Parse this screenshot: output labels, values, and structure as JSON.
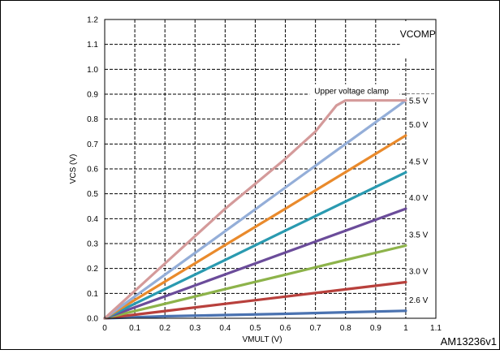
{
  "chart_data": {
    "type": "line",
    "xlabel": "VMULT (V)",
    "ylabel": "VCS (V)",
    "xlim": [
      0,
      1.1
    ],
    "ylim": [
      0,
      1.2
    ],
    "x_ticks": [
      "0",
      "0.1",
      "0.2",
      "0.3",
      "0.4",
      "0.5",
      "0.6",
      "0.7",
      "0.8",
      "0.9",
      "1",
      "1.1"
    ],
    "y_ticks": [
      "0.0",
      "0.1",
      "0.2",
      "0.3",
      "0.4",
      "0.5",
      "0.6",
      "0.7",
      "0.8",
      "0.9",
      "1.0",
      "1.1",
      "1.2"
    ],
    "grid": true,
    "annotations": {
      "region_label": "VCOMP",
      "clamp_label": "Upper voltage clamp",
      "figure_id": "AM13236v1"
    },
    "series": [
      {
        "name": "2.6 V",
        "color": "#4a72b0",
        "points": [
          [
            0,
            0
          ],
          [
            0.2,
            0.008
          ],
          [
            0.4,
            0.013
          ],
          [
            0.6,
            0.018
          ],
          [
            0.8,
            0.024
          ],
          [
            1.0,
            0.03
          ]
        ]
      },
      {
        "name": "3.0 V",
        "color": "#b8403c",
        "points": [
          [
            0,
            0
          ],
          [
            0.2,
            0.029
          ],
          [
            0.4,
            0.058
          ],
          [
            0.6,
            0.087
          ],
          [
            0.8,
            0.116
          ],
          [
            1.0,
            0.145
          ]
        ]
      },
      {
        "name": "3.5 V",
        "color": "#8db34a",
        "points": [
          [
            0,
            0
          ],
          [
            0.2,
            0.058
          ],
          [
            0.4,
            0.117
          ],
          [
            0.6,
            0.175
          ],
          [
            0.8,
            0.234
          ],
          [
            1.0,
            0.292
          ]
        ]
      },
      {
        "name": "4.0 V",
        "color": "#6b4c9a",
        "points": [
          [
            0,
            0
          ],
          [
            0.2,
            0.088
          ],
          [
            0.4,
            0.176
          ],
          [
            0.6,
            0.264
          ],
          [
            0.8,
            0.352
          ],
          [
            1.0,
            0.44
          ]
        ]
      },
      {
        "name": "4.5 V",
        "color": "#2a9ab0",
        "points": [
          [
            0,
            0
          ],
          [
            0.2,
            0.117
          ],
          [
            0.4,
            0.234
          ],
          [
            0.6,
            0.352
          ],
          [
            0.8,
            0.469
          ],
          [
            1.0,
            0.586
          ]
        ]
      },
      {
        "name": "5.0 V",
        "color": "#e98a2c",
        "points": [
          [
            0,
            0
          ],
          [
            0.2,
            0.147
          ],
          [
            0.4,
            0.294
          ],
          [
            0.6,
            0.44
          ],
          [
            0.8,
            0.587
          ],
          [
            1.0,
            0.734
          ]
        ]
      },
      {
        "name": "5.5 V",
        "color": "#94aed8",
        "points": [
          [
            0,
            0
          ],
          [
            0.2,
            0.175
          ],
          [
            0.4,
            0.35
          ],
          [
            0.6,
            0.525
          ],
          [
            0.8,
            0.7
          ],
          [
            1.0,
            0.875
          ]
        ]
      },
      {
        "name": "",
        "color": "#d49a9a",
        "points": [
          [
            0,
            0
          ],
          [
            0.1,
            0.11
          ],
          [
            0.2,
            0.22
          ],
          [
            0.3,
            0.33
          ],
          [
            0.4,
            0.44
          ],
          [
            0.5,
            0.54
          ],
          [
            0.6,
            0.64
          ],
          [
            0.7,
            0.75
          ],
          [
            0.77,
            0.855
          ],
          [
            0.8,
            0.875
          ],
          [
            1.0,
            0.875
          ]
        ]
      }
    ]
  }
}
